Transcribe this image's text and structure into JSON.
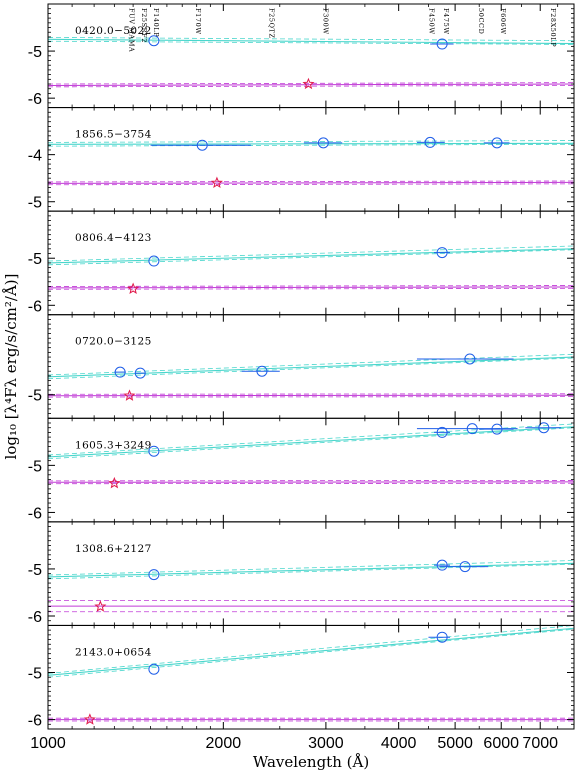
{
  "chart_data": {
    "type": "scatter",
    "xlabel": "Wavelength (Å)",
    "ylabel": "log₁₀ [λ⁴Fλ erg/s/cm²/Å)]",
    "xscale": "log",
    "xlim": [
      1000,
      8000
    ],
    "x_ticks": [
      1000,
      2000,
      3000,
      4000,
      5000,
      6000,
      7000
    ],
    "filters": [
      {
        "name": "FUV MAMA",
        "wavelength": 1370
      },
      {
        "name": "F25SRF2",
        "wavelength": 1440
      },
      {
        "name": "F140LP",
        "wavelength": 1510
      },
      {
        "name": "F170W",
        "wavelength": 1780
      },
      {
        "name": "F25QTZ",
        "wavelength": 2380
      },
      {
        "name": "F300W",
        "wavelength": 2950
      },
      {
        "name": "F450W",
        "wavelength": 4480
      },
      {
        "name": "F475W",
        "wavelength": 4750
      },
      {
        "name": "50CCD",
        "wavelength": 5450
      },
      {
        "name": "F606W",
        "wavelength": 5950
      },
      {
        "name": "F28X50LP",
        "wavelength": 7250
      }
    ],
    "panels": [
      {
        "label": "0420.0−5022",
        "ylim": [
          -6.2,
          -4.0
        ],
        "y_ticks": [
          -6,
          -5
        ],
        "points": [
          {
            "x": 1520,
            "y": -4.78,
            "xlo": 1520,
            "xhi": 1520
          },
          {
            "x": 4750,
            "y": -4.85,
            "xlo": 4530,
            "xhi": 4970
          }
        ],
        "wd_star": {
          "x": 2800,
          "y": -5.7
        },
        "cyan_fit": {
          "y_start": -4.75,
          "y_end": -4.84
        },
        "magenta_fit": {
          "y_start": -5.73,
          "y_end": -5.7
        }
      },
      {
        "label": "1856.5−3754",
        "ylim": [
          -5.2,
          -3.0
        ],
        "y_ticks": [
          -5,
          -4
        ],
        "points": [
          {
            "x": 1840,
            "y": -3.8,
            "xlo": 1500,
            "xhi": 2230
          },
          {
            "x": 2970,
            "y": -3.75,
            "xlo": 2750,
            "xhi": 3200
          },
          {
            "x": 4530,
            "y": -3.74,
            "xlo": 4300,
            "xhi": 4800
          },
          {
            "x": 5900,
            "y": -3.75,
            "xlo": 5600,
            "xhi": 6200
          }
        ],
        "wd_star": {
          "x": 1950,
          "y": -4.6
        },
        "cyan_fit": {
          "y_start": -3.78,
          "y_end": -3.76
        },
        "magenta_fit": {
          "y_start": -4.61,
          "y_end": -4.59
        }
      },
      {
        "label": "0806.4−4123",
        "ylim": [
          -6.2,
          -4.0
        ],
        "y_ticks": [
          -6,
          -5
        ],
        "points": [
          {
            "x": 1520,
            "y": -5.06,
            "xlo": 1520,
            "xhi": 1520
          },
          {
            "x": 4750,
            "y": -4.88,
            "xlo": 4600,
            "xhi": 4900
          }
        ],
        "wd_star": {
          "x": 1400,
          "y": -5.65
        },
        "cyan_fit": {
          "y_start": -5.1,
          "y_end": -4.8
        },
        "magenta_fit": {
          "y_start": -5.63,
          "y_end": -5.61
        }
      },
      {
        "label": "0720.0−3125",
        "ylim": [
          -5.5,
          -3.3
        ],
        "y_ticks": [
          -5
        ],
        "points": [
          {
            "x": 1330,
            "y": -4.52,
            "xlo": 1300,
            "xhi": 1360
          },
          {
            "x": 1440,
            "y": -4.54,
            "xlo": 1410,
            "xhi": 1470
          },
          {
            "x": 2330,
            "y": -4.5,
            "xlo": 2150,
            "xhi": 2500
          },
          {
            "x": 5300,
            "y": -4.24,
            "xlo": 4300,
            "xhi": 6300
          }
        ],
        "wd_star": {
          "x": 1380,
          "y": -5.02
        },
        "cyan_fit": {
          "y_start": -4.62,
          "y_end": -4.2
        },
        "magenta_fit": {
          "y_start": -5.02,
          "y_end": -5.01
        }
      },
      {
        "label": "1605.3+3249",
        "ylim": [
          -6.2,
          -4.0
        ],
        "y_ticks": [
          -6,
          -5
        ],
        "points": [
          {
            "x": 1520,
            "y": -4.7,
            "xlo": 1520,
            "xhi": 1520
          },
          {
            "x": 4750,
            "y": -4.3,
            "xlo": 4600,
            "xhi": 4900
          },
          {
            "x": 5350,
            "y": -4.22,
            "xlo": 4300,
            "xhi": 6400
          },
          {
            "x": 5900,
            "y": -4.23,
            "xlo": 5500,
            "xhi": 6300
          },
          {
            "x": 7100,
            "y": -4.2,
            "xlo": 6600,
            "xhi": 7600
          }
        ],
        "wd_star": {
          "x": 1300,
          "y": -5.38
        },
        "cyan_fit": {
          "y_start": -4.82,
          "y_end": -4.18
        },
        "magenta_fit": {
          "y_start": -5.36,
          "y_end": -5.35
        }
      },
      {
        "label": "1308.6+2127",
        "ylim": [
          -6.2,
          -4.0
        ],
        "y_ticks": [
          -6,
          -5
        ],
        "points": [
          {
            "x": 1520,
            "y": -5.12,
            "xlo": 1520,
            "xhi": 1520
          },
          {
            "x": 4750,
            "y": -4.92,
            "xlo": 4600,
            "xhi": 4900
          },
          {
            "x": 5200,
            "y": -4.95,
            "xlo": 4700,
            "xhi": 5700
          }
        ],
        "wd_star": {
          "x": 1230,
          "y": -5.8
        },
        "cyan_fit": {
          "y_start": -5.17,
          "y_end": -4.88
        },
        "magenta_fit": {
          "y_start": -5.79,
          "y_end": -5.79
        }
      },
      {
        "label": "2143.0+0654",
        "ylim": [
          -6.2,
          -4.0
        ],
        "y_ticks": [
          -6,
          -5
        ],
        "points": [
          {
            "x": 1520,
            "y": -4.93,
            "xlo": 1520,
            "xhi": 1520
          },
          {
            "x": 4750,
            "y": -4.25,
            "xlo": 4500,
            "xhi": 4900
          }
        ],
        "wd_star": {
          "x": 1180,
          "y": -6.0
        },
        "cyan_fit": {
          "y_start": -5.06,
          "y_end": -4.06
        },
        "magenta_fit": {
          "y_start": -6.0,
          "y_end": -6.0
        }
      }
    ]
  },
  "colors": {
    "points": "#1f5ee8",
    "cyan_fit": "#4ad6cc",
    "magenta_fit": "#c03ad6",
    "star": "#e0194a",
    "axis": "#000000"
  }
}
